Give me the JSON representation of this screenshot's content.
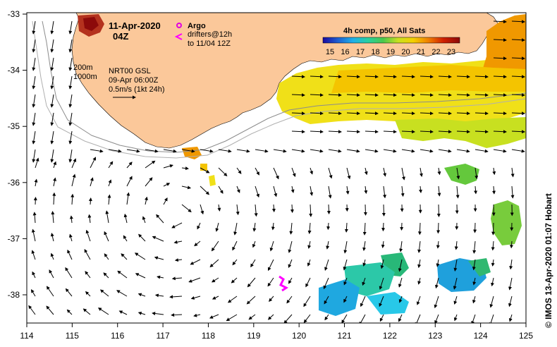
{
  "map": {
    "date": "11-Apr-2020",
    "time": "04Z",
    "argo_label": "Argo",
    "drifters_line1": "drifters@12h",
    "drifters_line2": "to 11/04 12Z",
    "contour_1": "200m",
    "contour_2": "1000m",
    "nrt_line1": "NRT00 GSL",
    "nrt_line2": "09-Apr 06:00Z",
    "nrt_line3": "0.5m/s (1kt 24h)",
    "credit": "© IMOS 13-Apr-2020 01:07 Hobart",
    "colors": {
      "land": "#fbc89a",
      "argo": "#e000e0",
      "drifter": "#ff00ff"
    }
  },
  "colorbar": {
    "title": "4h comp, p50, All Sats",
    "ticks": [
      "15",
      "16",
      "17",
      "18",
      "19",
      "20",
      "21",
      "22",
      "23"
    ],
    "stops": [
      "#1a0aa0",
      "#1e5fd0",
      "#1fb0e8",
      "#28d0a0",
      "#4cc84c",
      "#c8e020",
      "#f4d000",
      "#f08000",
      "#d02000",
      "#8c0a0a"
    ]
  },
  "axes": {
    "x_ticks": [
      "114",
      "115",
      "116",
      "117",
      "118",
      "119",
      "120",
      "121",
      "122",
      "123",
      "124",
      "125"
    ],
    "y_ticks": [
      "-33",
      "-34",
      "-35",
      "-36",
      "-37",
      "-38"
    ]
  }
}
